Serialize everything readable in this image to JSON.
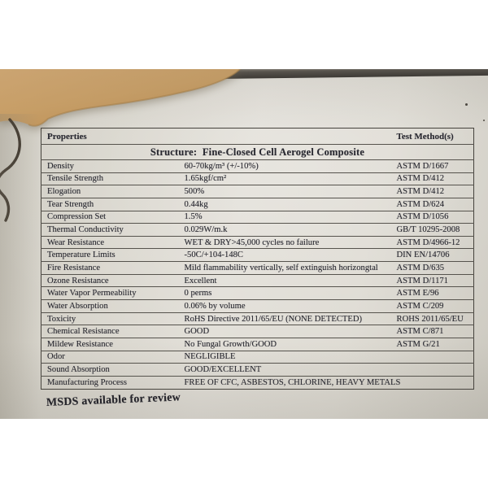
{
  "scene": {
    "colors": {
      "paper": "#ddd9d0",
      "paper_shadow": "#c9c6bd",
      "foam_object": "#c89a62",
      "desk_edge": "#45423c",
      "table_border": "#504d47",
      "text": "#2a2a32"
    }
  },
  "document": {
    "table": {
      "header": {
        "properties_label": "Properties",
        "test_method_label": "Test Method(s)"
      },
      "structure_title": "Structure:  Fine-Closed Cell Aerogel Composite",
      "rows": [
        {
          "property": "Density",
          "value": "60-70kg/m³ (+/-10%)",
          "test_method": "ASTM D/1667"
        },
        {
          "property": "Tensile Strength",
          "value": "1.65kgf/cm²",
          "test_method": "ASTM D/412"
        },
        {
          "property": "Elogation",
          "value": "500%",
          "test_method": "ASTM D/412"
        },
        {
          "property": "Tear Strength",
          "value": "0.44kg",
          "test_method": "ASTM D/624"
        },
        {
          "property": "Compression Set",
          "value": "1.5%",
          "test_method": "ASTM D/1056"
        },
        {
          "property": "Thermal Conductivity",
          "value": "0.029W/m.k",
          "test_method": "GB/T 10295-2008"
        },
        {
          "property": "Wear Resistance",
          "value": "WET & DRY>45,000 cycles no failure",
          "test_method": "ASTM D/4966-12"
        },
        {
          "property": "Temperature Limits",
          "value": "-50C/+104-148C",
          "test_method": "DIN EN/14706"
        },
        {
          "property": "Fire Resistance",
          "value": "Mild flammability vertically, self extinguish horizongtal",
          "test_method": "ASTM D/635"
        },
        {
          "property": "Ozone Resistance",
          "value": "Excellent",
          "test_method": "ASTM D/1171"
        },
        {
          "property": "Water Vapor Permeability",
          "value": "0 perms",
          "test_method": "ASTM E/96"
        },
        {
          "property": "Water Absorption",
          "value": "0.06% by volume",
          "test_method": "ASTM C/209"
        },
        {
          "property": "Toxicity",
          "value": "RoHS Directive 2011/65/EU (NONE DETECTED)",
          "test_method": "ROHS 2011/65/EU"
        },
        {
          "property": "Chemical Resistance",
          "value": "GOOD",
          "test_method": "ASTM C/871"
        },
        {
          "property": "Mildew Resistance",
          "value": "No Fungal Growth/GOOD",
          "test_method": "ASTM G/21"
        },
        {
          "property": "Odor",
          "value": "NEGLIGIBLE",
          "test_method": ""
        },
        {
          "property": "Sound Absorption",
          "value": "GOOD/EXCELLENT",
          "test_method": ""
        },
        {
          "property": "Manufacturing Process",
          "value": "FREE OF CFC, ASBESTOS, CHLORINE, HEAVY METALS",
          "test_method": ""
        }
      ]
    },
    "footnote": "MSDS available for review"
  }
}
